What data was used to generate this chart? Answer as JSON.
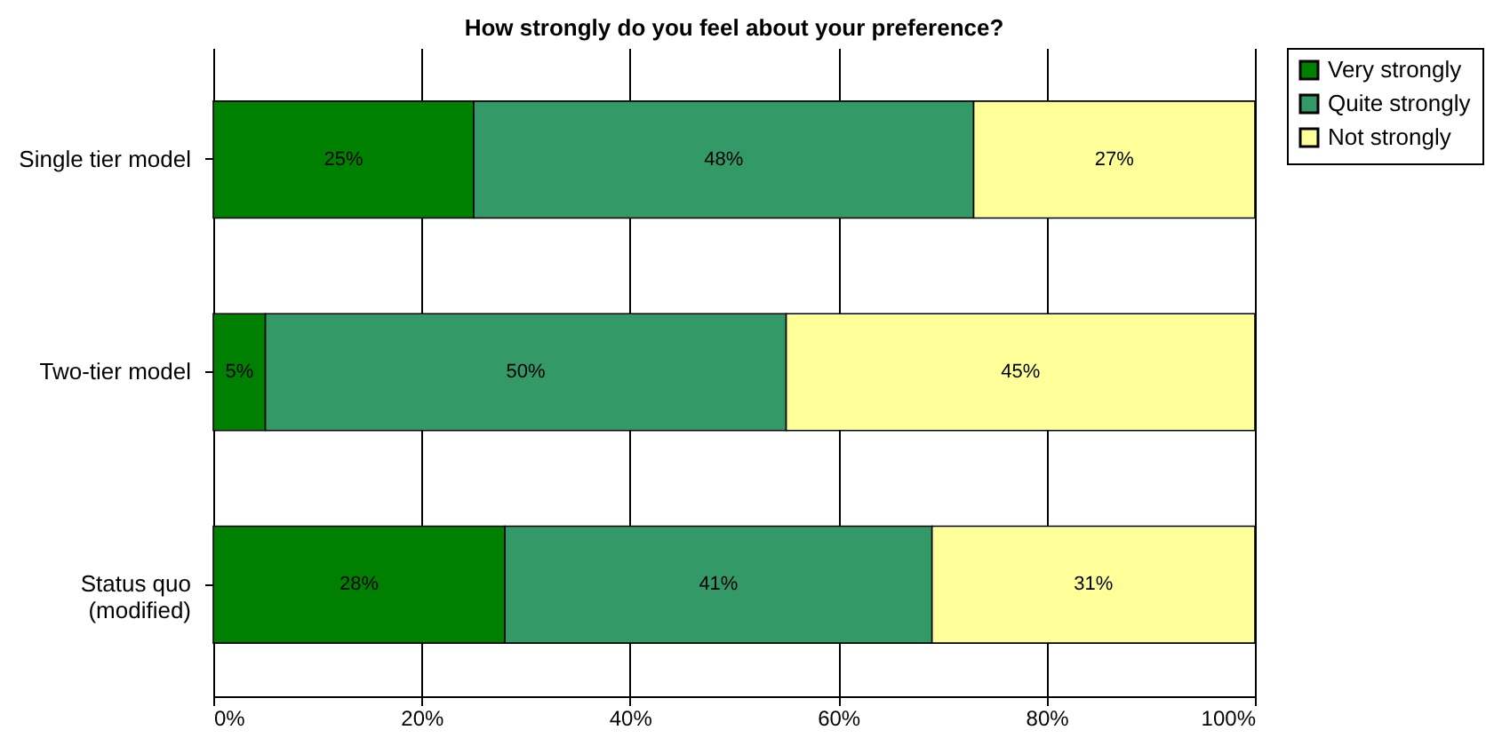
{
  "chart_data": {
    "type": "bar",
    "title": "How strongly do you feel about your preference?",
    "orientation": "horizontal",
    "stacked": true,
    "categories": [
      "Single tier model",
      "Two-tier model",
      "Status quo\n(modified)"
    ],
    "series": [
      {
        "name": "Very strongly",
        "color": "#008000",
        "values": [
          25,
          5,
          28
        ],
        "value_labels": [
          "25%",
          "5%",
          "28%"
        ]
      },
      {
        "name": "Quite strongly",
        "color": "#339966",
        "values": [
          48,
          50,
          41
        ],
        "value_labels": [
          "48%",
          "50%",
          "41%"
        ]
      },
      {
        "name": "Not strongly",
        "color": "#ffff99",
        "values": [
          27,
          45,
          31
        ],
        "value_labels": [
          "27%",
          "45%",
          "31%"
        ]
      }
    ],
    "xlim": [
      0,
      100
    ],
    "xticks": [
      {
        "value": 0,
        "label": "0%"
      },
      {
        "value": 20,
        "label": "20%"
      },
      {
        "value": 40,
        "label": "40%"
      },
      {
        "value": 60,
        "label": "60%"
      },
      {
        "value": 80,
        "label": "80%"
      },
      {
        "value": 100,
        "label": "100%"
      }
    ],
    "grid": "x",
    "legend": "right"
  }
}
